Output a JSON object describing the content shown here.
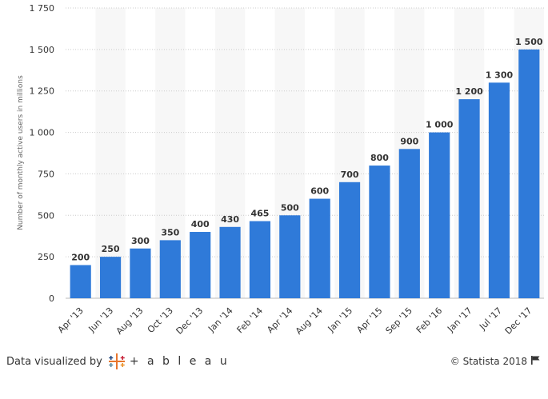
{
  "chart_data": {
    "type": "bar",
    "categories": [
      "Apr '13",
      "Jun '13",
      "Aug '13",
      "Oct '13",
      "Dec '13",
      "Jan '14",
      "Feb '14",
      "Apr '14",
      "Aug '14",
      "Jan '15",
      "Apr '15",
      "Sep '15",
      "Feb '16",
      "Jan '17",
      "Jul '17",
      "Dec '17"
    ],
    "values": [
      200,
      250,
      300,
      350,
      400,
      430,
      465,
      500,
      600,
      700,
      800,
      900,
      1000,
      1200,
      1300,
      1500
    ],
    "value_labels": [
      "200",
      "250",
      "300",
      "350",
      "400",
      "430",
      "465",
      "500",
      "600",
      "700",
      "800",
      "900",
      "1 000",
      "1 200",
      "1 300",
      "1 500"
    ],
    "ylabel": "Number of monthly active users in millions",
    "ylim": [
      0,
      1750
    ],
    "y_ticks": [
      0,
      250,
      500,
      750,
      1000,
      1250,
      1500,
      1750
    ],
    "y_tick_labels": [
      "0",
      "250",
      "500",
      "750",
      "1 000",
      "1 250",
      "1 500",
      "1 750"
    ],
    "grid": true,
    "bar_color": "#2f7ad9",
    "alt_band_color": "#f7f7f7",
    "grid_color": "#cccccc"
  },
  "footer": {
    "attribution": "Data visualized by",
    "tableau_wordmark": "+ a b l e a u",
    "copyright": "© Statista 2018",
    "flag_icon": "flag-icon"
  }
}
